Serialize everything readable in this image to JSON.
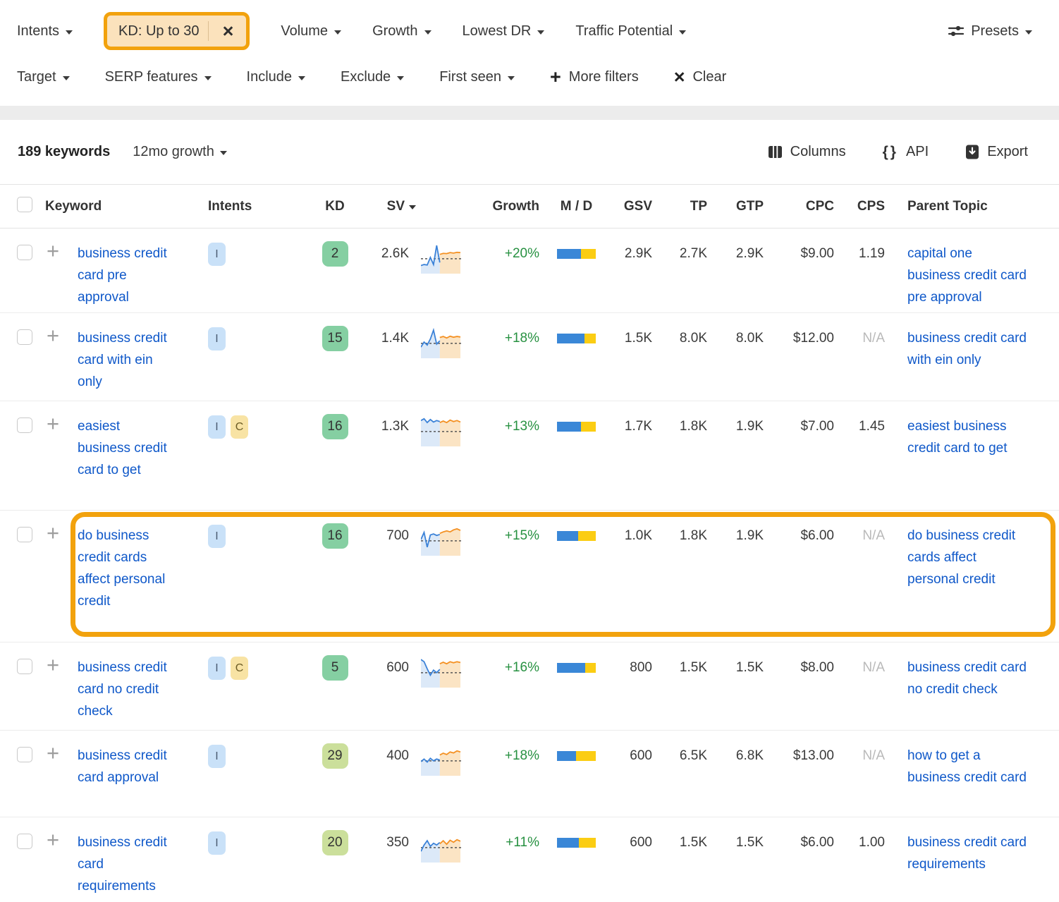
{
  "colors": {
    "annotation_orange": "#F2A20D",
    "chip_bg": "#FBE2BC",
    "link_blue": "#0F58C9",
    "growth_green": "#279141",
    "md_blue": "#3A87D7",
    "md_yellow": "#FBCD13",
    "kd_easy_green": "#85CFA2",
    "kd_medium_lime": "#CBDF9B",
    "intent_i_bg": "#C9E1F8",
    "intent_c_bg": "#F8E3A4",
    "spark_blue": "#3B82D8",
    "spark_orange": "#F49123"
  },
  "icons": {
    "presets": "sliders-icon",
    "columns": "columns-icon",
    "api": "braces-icon",
    "export": "download-icon",
    "more_filters": "plus-icon",
    "clear": "x-icon",
    "chip_close": "x-icon",
    "sv_sort": "caret-down-icon"
  },
  "filter_bar": {
    "intents": "Intents",
    "kd_chip": "KD: Up to 30",
    "volume": "Volume",
    "growth": "Growth",
    "lowest_dr": "Lowest DR",
    "traffic_potential": "Traffic Potential",
    "presets": "Presets",
    "target": "Target",
    "serp_features": "SERP features",
    "include": "Include",
    "exclude": "Exclude",
    "first_seen": "First seen",
    "more_filters": "More filters",
    "clear": "Clear"
  },
  "toolbar": {
    "count": "189 keywords",
    "growth_mode": "12mo growth",
    "columns": "Columns",
    "api": "API",
    "export": "Export"
  },
  "table": {
    "headers": {
      "keyword": "Keyword",
      "intents": "Intents",
      "kd": "KD",
      "sv": "SV",
      "growth": "Growth",
      "md": "M / D",
      "gsv": "GSV",
      "tp": "TP",
      "gtp": "GTP",
      "cpc": "CPC",
      "cps": "CPS",
      "parent": "Parent Topic"
    },
    "rows": [
      {
        "keyword": "business credit card pre approval",
        "intents": [
          "I"
        ],
        "kd": "2",
        "kd_level": "green",
        "sv": "2.6K",
        "growth": "+20%",
        "md": [
          61,
          39
        ],
        "gsv": "2.9K",
        "tp": "2.7K",
        "gtp": "2.9K",
        "cpc": "$9.00",
        "cps": "1.19",
        "parent": "capital one business credit card pre approval",
        "highlighted": false,
        "spark": {
          "blue": [
            0.18,
            0.22,
            0.2,
            0.5,
            0.22,
            0.97,
            0.3
          ],
          "orange": [
            0.62,
            0.66,
            0.65,
            0.69,
            0.67,
            0.7,
            0.69
          ]
        }
      },
      {
        "keyword": "business credit card with ein only",
        "intents": [
          "I"
        ],
        "kd": "15",
        "kd_level": "green",
        "sv": "1.4K",
        "growth": "+18%",
        "md": [
          70,
          30
        ],
        "gsv": "1.5K",
        "tp": "8.0K",
        "gtp": "8.0K",
        "cpc": "$12.00",
        "cps": "N/A",
        "parent": "business credit card with ein only",
        "highlighted": false,
        "spark": {
          "blue": [
            0.3,
            0.5,
            0.38,
            0.62,
            0.97,
            0.42,
            0.55
          ],
          "orange": [
            0.68,
            0.72,
            0.66,
            0.73,
            0.69,
            0.72,
            0.7
          ]
        }
      },
      {
        "keyword": "easiest business credit card to get",
        "intents": [
          "I",
          "C"
        ],
        "kd": "16",
        "kd_level": "green",
        "sv": "1.3K",
        "growth": "+13%",
        "md": [
          62,
          38
        ],
        "gsv": "1.7K",
        "tp": "1.8K",
        "gtp": "1.9K",
        "cpc": "$7.00",
        "cps": "1.45",
        "parent": "easiest business credit card to get",
        "highlighted": false,
        "spark": {
          "blue": [
            0.88,
            0.95,
            0.8,
            0.92,
            0.82,
            0.88,
            0.84
          ],
          "orange": [
            0.8,
            0.86,
            0.8,
            0.9,
            0.84,
            0.88,
            0.82
          ]
        }
      },
      {
        "keyword": "do business credit cards affect personal credit",
        "intents": [
          "I"
        ],
        "kd": "16",
        "kd_level": "green",
        "sv": "700",
        "growth": "+15%",
        "md": [
          54,
          46
        ],
        "gsv": "1.0K",
        "tp": "1.8K",
        "gtp": "1.9K",
        "cpc": "$6.00",
        "cps": "N/A",
        "parent": "do business credit cards affect personal credit",
        "highlighted": true,
        "spark": {
          "blue": [
            0.5,
            0.78,
            0.2,
            0.68,
            0.72,
            0.66,
            0.7
          ],
          "orange": [
            0.74,
            0.8,
            0.84,
            0.8,
            0.88,
            0.92,
            0.86
          ]
        }
      },
      {
        "keyword": "business credit card no credit check",
        "intents": [
          "I",
          "C"
        ],
        "kd": "5",
        "kd_level": "green",
        "sv": "600",
        "growth": "+16%",
        "md": [
          73,
          27
        ],
        "gsv": "800",
        "tp": "1.5K",
        "gtp": "1.5K",
        "cpc": "$8.00",
        "cps": "N/A",
        "parent": "business credit card no credit check",
        "highlighted": false,
        "spark": {
          "blue": [
            0.97,
            0.88,
            0.6,
            0.35,
            0.55,
            0.45,
            0.58
          ],
          "orange": [
            0.8,
            0.86,
            0.8,
            0.88,
            0.84,
            0.88,
            0.85
          ]
        }
      },
      {
        "keyword": "business credit card approval",
        "intents": [
          "I"
        ],
        "kd": "29",
        "kd_level": "lime",
        "sv": "400",
        "growth": "+18%",
        "md": [
          49,
          51
        ],
        "gsv": "600",
        "tp": "6.5K",
        "gtp": "6.8K",
        "cpc": "$13.00",
        "cps": "N/A",
        "parent": "how to get a business credit card",
        "highlighted": false,
        "spark": {
          "blue": [
            0.42,
            0.52,
            0.4,
            0.55,
            0.45,
            0.52,
            0.48
          ],
          "orange": [
            0.68,
            0.75,
            0.7,
            0.8,
            0.76,
            0.84,
            0.8
          ]
        }
      },
      {
        "keyword": "business credit card requirements",
        "intents": [
          "I"
        ],
        "kd": "20",
        "kd_level": "lime",
        "sv": "350",
        "growth": "+11%",
        "md": [
          57,
          43
        ],
        "gsv": "600",
        "tp": "1.5K",
        "gtp": "1.5K",
        "cpc": "$6.00",
        "cps": "1.00",
        "parent": "business credit card requirements",
        "highlighted": false,
        "spark": {
          "blue": [
            0.3,
            0.55,
            0.72,
            0.5,
            0.62,
            0.55,
            0.65
          ],
          "orange": [
            0.6,
            0.72,
            0.58,
            0.74,
            0.66,
            0.76,
            0.7
          ]
        }
      }
    ]
  }
}
